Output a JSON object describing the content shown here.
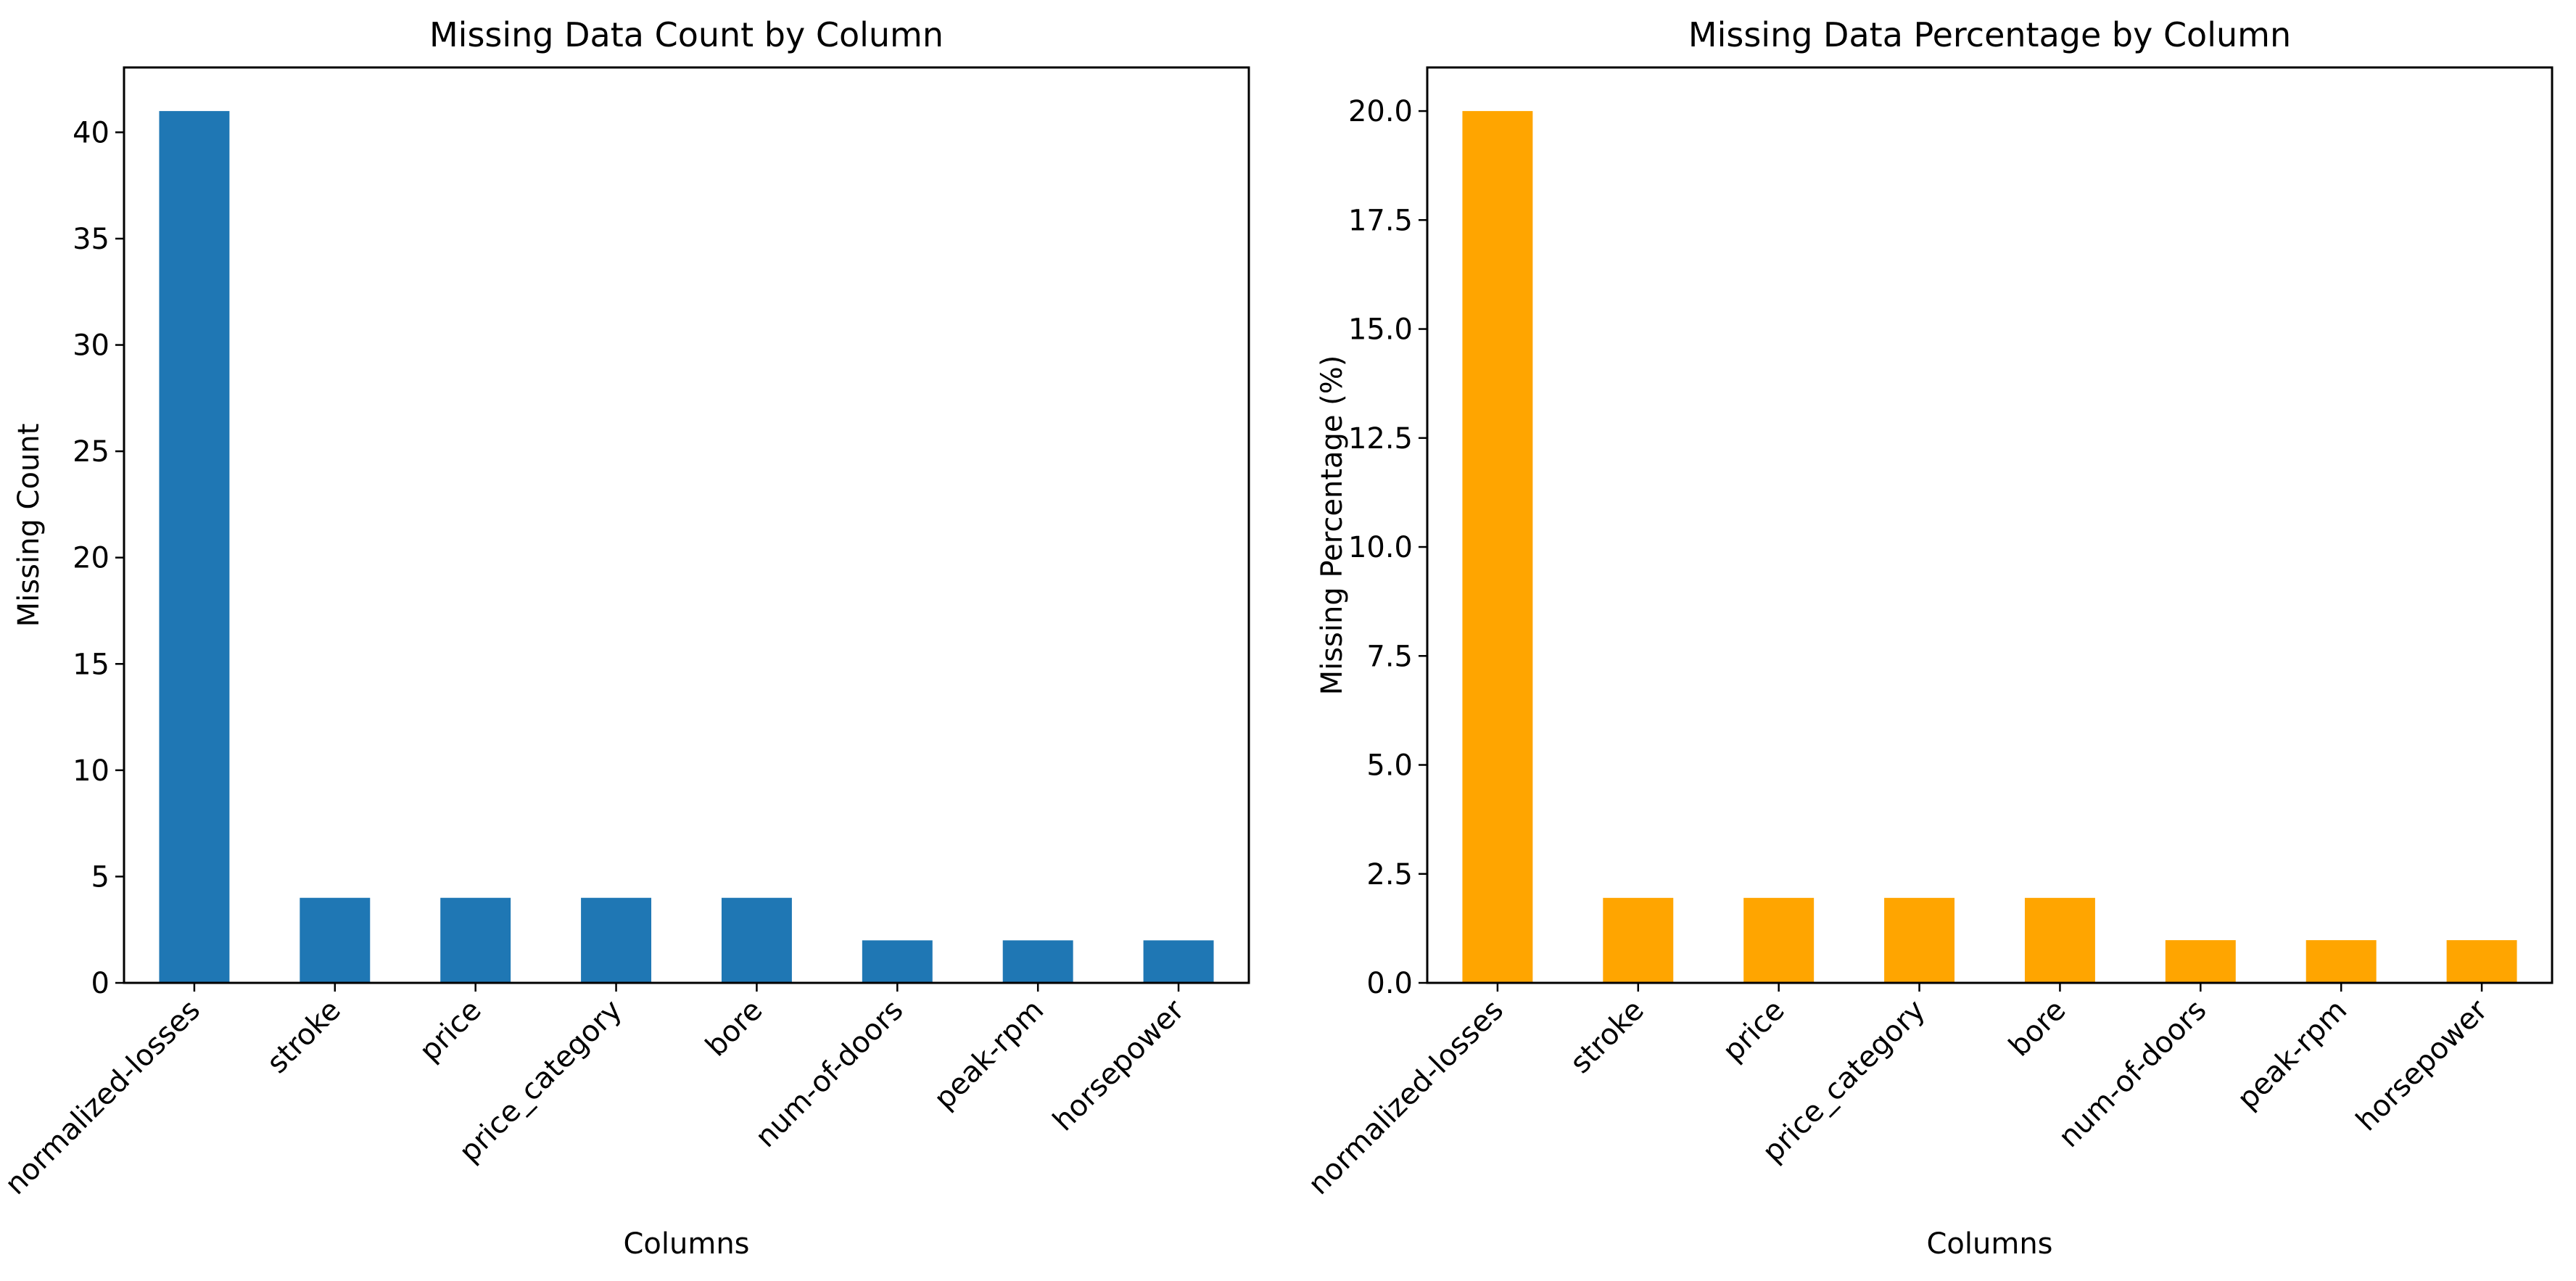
{
  "chart_data": [
    {
      "type": "bar",
      "title": "Missing Data Count by Column",
      "xlabel": "Columns",
      "ylabel": "Missing Count",
      "categories": [
        "normalized-losses",
        "stroke",
        "price",
        "price_category",
        "bore",
        "num-of-doors",
        "peak-rpm",
        "horsepower"
      ],
      "values": [
        41,
        4,
        4,
        4,
        4,
        2,
        2,
        2
      ],
      "ylim": [
        0,
        43.05
      ],
      "yticks": [
        "0",
        "5",
        "10",
        "15",
        "20",
        "25",
        "30",
        "35",
        "40"
      ],
      "color": "#1f77b4"
    },
    {
      "type": "bar",
      "title": "Missing Data Percentage by Column",
      "xlabel": "Columns",
      "ylabel": "Missing Percentage (%)",
      "categories": [
        "normalized-losses",
        "stroke",
        "price",
        "price_category",
        "bore",
        "num-of-doors",
        "peak-rpm",
        "horsepower"
      ],
      "values": [
        20.0,
        1.95,
        1.95,
        1.95,
        1.95,
        0.98,
        0.98,
        0.98
      ],
      "ylim": [
        0,
        21.0
      ],
      "yticks": [
        "0.0",
        "2.5",
        "5.0",
        "7.5",
        "10.0",
        "12.5",
        "15.0",
        "17.5",
        "20.0"
      ],
      "color": "#ffa500"
    }
  ]
}
